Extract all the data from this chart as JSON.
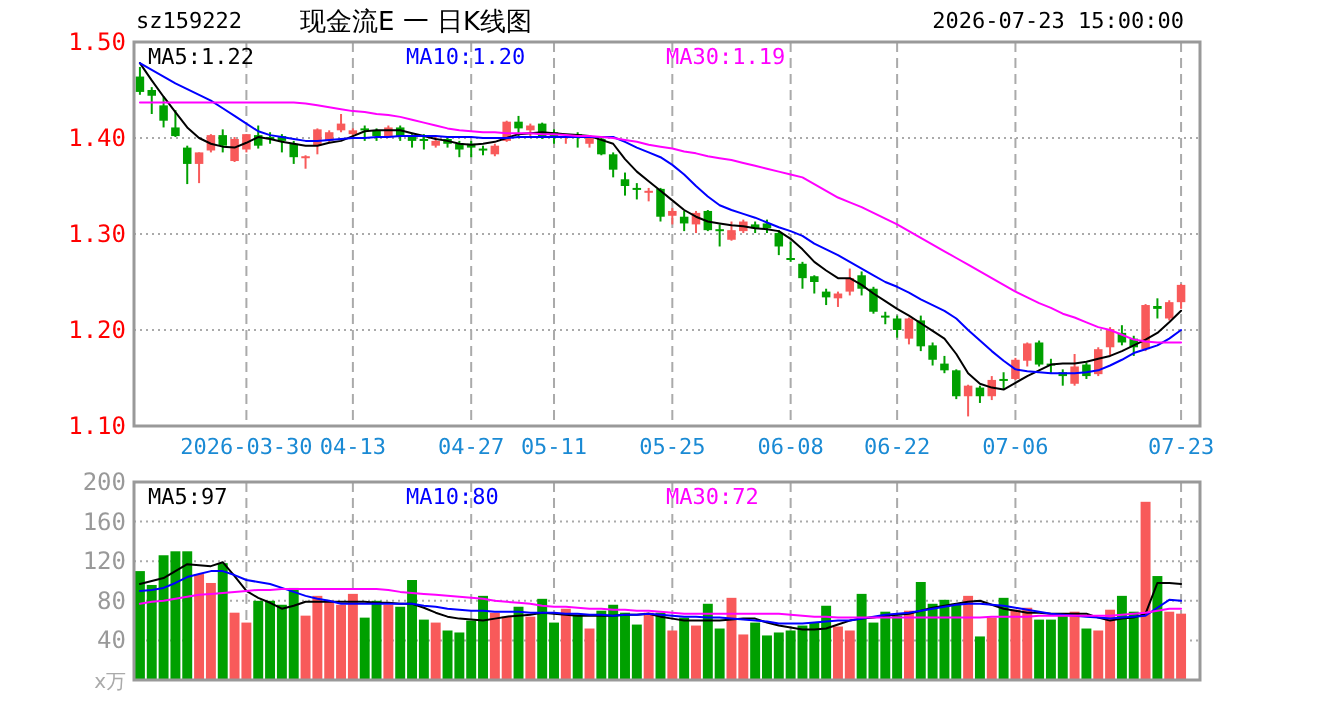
{
  "chart_data": [
    {
      "type": "candlestick",
      "title": "现金流E 一 日K线图",
      "subtitle": "sz159222",
      "annotations": [
        "2026-07-23 15:00:00"
      ],
      "categories": [
        null,
        null,
        null,
        null,
        null,
        null,
        null,
        null,
        null,
        "2026-03-30",
        null,
        null,
        null,
        null,
        null,
        null,
        null,
        null,
        "04-13",
        null,
        null,
        null,
        null,
        null,
        null,
        null,
        null,
        null,
        "04-27",
        null,
        null,
        null,
        null,
        null,
        null,
        "05-11",
        null,
        null,
        null,
        null,
        null,
        null,
        null,
        null,
        null,
        "05-25",
        null,
        null,
        null,
        null,
        null,
        null,
        null,
        null,
        null,
        "06-08",
        null,
        null,
        null,
        null,
        null,
        null,
        null,
        null,
        "06-22",
        null,
        null,
        null,
        null,
        null,
        null,
        null,
        null,
        null,
        "07-06",
        null,
        null,
        null,
        null,
        null,
        null,
        null,
        null,
        null,
        null,
        null,
        null,
        null,
        "07-23"
      ],
      "ohlc": [
        [
          1.464,
          1.474,
          1.445,
          1.448
        ],
        [
          1.45,
          1.453,
          1.425,
          1.444
        ],
        [
          1.434,
          1.443,
          1.411,
          1.418
        ],
        [
          1.411,
          1.429,
          1.401,
          1.402
        ],
        [
          1.39,
          1.392,
          1.352,
          1.373
        ],
        [
          1.373,
          1.385,
          1.353,
          1.385
        ],
        [
          1.387,
          1.404,
          1.385,
          1.403
        ],
        [
          1.403,
          1.409,
          1.385,
          1.392
        ],
        [
          1.376,
          1.401,
          1.375,
          1.399
        ],
        [
          1.388,
          1.404,
          1.385,
          1.404
        ],
        [
          1.403,
          1.413,
          1.389,
          1.392
        ],
        [
          1.401,
          1.406,
          1.394,
          1.399
        ],
        [
          1.402,
          1.404,
          1.385,
          1.397
        ],
        [
          1.394,
          1.397,
          1.373,
          1.38
        ],
        [
          1.38,
          1.382,
          1.368,
          1.381
        ],
        [
          1.392,
          1.41,
          1.383,
          1.409
        ],
        [
          1.397,
          1.408,
          1.395,
          1.406
        ],
        [
          1.408,
          1.425,
          1.406,
          1.415
        ],
        [
          1.404,
          1.41,
          1.401,
          1.408
        ],
        [
          1.41,
          1.413,
          1.397,
          1.408
        ],
        [
          1.408,
          1.41,
          1.397,
          1.402
        ],
        [
          1.402,
          1.413,
          1.401,
          1.411
        ],
        [
          1.411,
          1.413,
          1.397,
          1.402
        ],
        [
          1.402,
          1.404,
          1.39,
          1.397
        ],
        [
          1.399,
          1.404,
          1.388,
          1.397
        ],
        [
          1.392,
          1.401,
          1.39,
          1.397
        ],
        [
          1.399,
          1.402,
          1.39,
          1.394
        ],
        [
          1.394,
          1.397,
          1.38,
          1.388
        ],
        [
          1.394,
          1.397,
          1.38,
          1.39
        ],
        [
          1.389,
          1.392,
          1.382,
          1.387
        ],
        [
          1.383,
          1.394,
          1.381,
          1.392
        ],
        [
          1.397,
          1.418,
          1.396,
          1.417
        ],
        [
          1.417,
          1.423,
          1.401,
          1.41
        ],
        [
          1.408,
          1.415,
          1.401,
          1.413
        ],
        [
          1.415,
          1.416,
          1.399,
          1.402
        ],
        [
          1.406,
          1.409,
          1.394,
          1.402
        ],
        [
          1.4,
          1.404,
          1.394,
          1.402
        ],
        [
          1.404,
          1.406,
          1.39,
          1.401
        ],
        [
          1.394,
          1.402,
          1.39,
          1.401
        ],
        [
          1.399,
          1.401,
          1.382,
          1.383
        ],
        [
          1.383,
          1.385,
          1.359,
          1.367
        ],
        [
          1.357,
          1.364,
          1.34,
          1.35
        ],
        [
          1.348,
          1.353,
          1.336,
          1.347
        ],
        [
          1.343,
          1.348,
          1.334,
          1.345
        ],
        [
          1.347,
          1.348,
          1.313,
          1.318
        ],
        [
          1.319,
          1.327,
          1.31,
          1.324
        ],
        [
          1.318,
          1.324,
          1.303,
          1.311
        ],
        [
          1.31,
          1.324,
          1.301,
          1.322
        ],
        [
          1.324,
          1.325,
          1.303,
          1.304
        ],
        [
          1.305,
          1.31,
          1.287,
          1.303
        ],
        [
          1.294,
          1.313,
          1.293,
          1.304
        ],
        [
          1.303,
          1.315,
          1.301,
          1.313
        ],
        [
          1.31,
          1.313,
          1.301,
          1.306
        ],
        [
          1.311,
          1.315,
          1.301,
          1.306
        ],
        [
          1.301,
          1.304,
          1.278,
          1.287
        ],
        [
          1.275,
          1.292,
          1.271,
          1.273
        ],
        [
          1.269,
          1.271,
          1.243,
          1.254
        ],
        [
          1.256,
          1.257,
          1.238,
          1.25
        ],
        [
          1.24,
          1.243,
          1.226,
          1.234
        ],
        [
          1.233,
          1.24,
          1.224,
          1.238
        ],
        [
          1.24,
          1.264,
          1.236,
          1.254
        ],
        [
          1.257,
          1.261,
          1.236,
          1.243
        ],
        [
          1.243,
          1.245,
          1.217,
          1.219
        ],
        [
          1.215,
          1.219,
          1.206,
          1.213
        ],
        [
          1.212,
          1.215,
          1.192,
          1.2
        ],
        [
          1.191,
          1.213,
          1.185,
          1.212
        ],
        [
          1.21,
          1.215,
          1.178,
          1.183
        ],
        [
          1.184,
          1.187,
          1.163,
          1.169
        ],
        [
          1.165,
          1.173,
          1.155,
          1.158
        ],
        [
          1.158,
          1.159,
          1.128,
          1.131
        ],
        [
          1.131,
          1.143,
          1.11,
          1.142
        ],
        [
          1.14,
          1.142,
          1.124,
          1.131
        ],
        [
          1.131,
          1.152,
          1.127,
          1.148
        ],
        [
          1.149,
          1.156,
          1.138,
          1.147
        ],
        [
          1.149,
          1.171,
          1.148,
          1.169
        ],
        [
          1.168,
          1.187,
          1.162,
          1.186
        ],
        [
          1.187,
          1.189,
          1.162,
          1.164
        ],
        [
          1.165,
          1.17,
          1.155,
          1.163
        ],
        [
          1.156,
          1.159,
          1.142,
          1.152
        ],
        [
          1.144,
          1.175,
          1.142,
          1.162
        ],
        [
          1.164,
          1.166,
          1.149,
          1.152
        ],
        [
          1.154,
          1.182,
          1.152,
          1.18
        ],
        [
          1.182,
          1.203,
          1.173,
          1.201
        ],
        [
          1.197,
          1.205,
          1.184,
          1.187
        ],
        [
          1.191,
          1.194,
          1.173,
          1.182
        ],
        [
          1.18,
          1.227,
          1.178,
          1.226
        ],
        [
          1.225,
          1.233,
          1.212,
          1.222
        ],
        [
          1.212,
          1.231,
          1.21,
          1.229
        ],
        [
          1.229,
          1.248,
          1.222,
          1.247
        ]
      ],
      "colors": [
        "#00a000",
        "#00a000",
        "#00a000",
        "#00a000",
        "#00a000",
        "#f85a5a",
        "#f85a5a",
        "#00a000",
        "#f85a5a",
        "#f85a5a",
        "#00a000",
        "#00a000",
        "#00a000",
        "#00a000",
        "#f85a5a",
        "#f85a5a",
        "#f85a5a",
        "#f85a5a",
        "#f85a5a",
        "#00a000",
        "#00a000",
        "#f85a5a",
        "#00a000",
        "#00a000",
        "#00a000",
        "#f85a5a",
        "#00a000",
        "#00a000",
        "#00a000",
        "#00a000",
        "#f85a5a",
        "#f85a5a",
        "#00a000",
        "#f85a5a",
        "#00a000",
        "#00a000",
        "#f85a5a",
        "#00a000",
        "#f85a5a",
        "#00a000",
        "#00a000",
        "#00a000",
        "#00a000",
        "#f85a5a",
        "#00a000",
        "#f85a5a",
        "#00a000",
        "#f85a5a",
        "#00a000",
        "#00a000",
        "#f85a5a",
        "#f85a5a",
        "#00a000",
        "#00a000",
        "#00a000",
        "#00a000",
        "#00a000",
        "#00a000",
        "#00a000",
        "#f85a5a",
        "#f85a5a",
        "#00a000",
        "#00a000",
        "#00a000",
        "#00a000",
        "#f85a5a",
        "#00a000",
        "#00a000",
        "#00a000",
        "#00a000",
        "#f85a5a",
        "#00a000",
        "#f85a5a",
        "#00a000",
        "#f85a5a",
        "#f85a5a",
        "#00a000",
        "#00a000",
        "#00a000",
        "#f85a5a",
        "#00a000",
        "#f85a5a",
        "#f85a5a",
        "#00a000",
        "#00a000",
        "#f85a5a",
        "#00a000",
        "#f85a5a",
        "#f85a5a"
      ],
      "series": [
        {
          "type": "line",
          "name": "MA5:1.22",
          "color": "#000000",
          "values": [
            1.478,
            1.46,
            1.443,
            1.427,
            1.411,
            1.4,
            1.394,
            1.391,
            1.39,
            1.395,
            1.401,
            1.399,
            1.396,
            1.394,
            1.392,
            1.392,
            1.395,
            1.397,
            1.402,
            1.407,
            1.408,
            1.408,
            1.408,
            1.405,
            1.402,
            1.399,
            1.397,
            1.394,
            1.393,
            1.394,
            1.396,
            1.4,
            1.404,
            1.405,
            1.406,
            1.405,
            1.404,
            1.403,
            1.402,
            1.398,
            1.394,
            1.378,
            1.365,
            1.355,
            1.345,
            1.335,
            1.325,
            1.318,
            1.313,
            1.311,
            1.309,
            1.308,
            1.306,
            1.305,
            1.303,
            1.295,
            1.284,
            1.271,
            1.262,
            1.254,
            1.254,
            1.247,
            1.238,
            1.23,
            1.222,
            1.215,
            1.207,
            1.199,
            1.191,
            1.175,
            1.155,
            1.144,
            1.14,
            1.138,
            1.145,
            1.152,
            1.158,
            1.164,
            1.165,
            1.165,
            1.167,
            1.17,
            1.173,
            1.178,
            1.184,
            1.19,
            1.197,
            1.208,
            1.22
          ]
        },
        {
          "type": "line",
          "name": "MA10:1.20",
          "color": "#0000ff",
          "values": [
            1.478,
            1.471,
            1.464,
            1.457,
            1.451,
            1.445,
            1.439,
            1.431,
            1.423,
            1.415,
            1.407,
            1.403,
            1.401,
            1.399,
            1.397,
            1.397,
            1.398,
            1.399,
            1.4,
            1.4,
            1.401,
            1.401,
            1.402,
            1.402,
            1.402,
            1.402,
            1.401,
            1.401,
            1.401,
            1.4,
            1.4,
            1.4,
            1.401,
            1.401,
            1.401,
            1.401,
            1.401,
            1.401,
            1.401,
            1.401,
            1.401,
            1.396,
            1.39,
            1.385,
            1.38,
            1.372,
            1.362,
            1.35,
            1.339,
            1.33,
            1.325,
            1.321,
            1.317,
            1.312,
            1.307,
            1.303,
            1.298,
            1.29,
            1.284,
            1.278,
            1.271,
            1.264,
            1.257,
            1.25,
            1.245,
            1.239,
            1.232,
            1.226,
            1.22,
            1.212,
            1.2,
            1.189,
            1.178,
            1.168,
            1.159,
            1.157,
            1.156,
            1.155,
            1.155,
            1.155,
            1.156,
            1.158,
            1.163,
            1.169,
            1.176,
            1.18,
            1.184,
            1.191,
            1.2
          ]
        },
        {
          "type": "line",
          "name": "MA30:1.19",
          "color": "#ff00ff",
          "values": [
            1.437,
            1.437,
            1.437,
            1.437,
            1.437,
            1.437,
            1.437,
            1.437,
            1.437,
            1.437,
            1.437,
            1.437,
            1.437,
            1.437,
            1.436,
            1.434,
            1.432,
            1.43,
            1.428,
            1.427,
            1.425,
            1.424,
            1.422,
            1.419,
            1.416,
            1.413,
            1.41,
            1.408,
            1.407,
            1.406,
            1.406,
            1.405,
            1.405,
            1.405,
            1.404,
            1.404,
            1.403,
            1.402,
            1.402,
            1.401,
            1.4,
            1.398,
            1.396,
            1.393,
            1.391,
            1.389,
            1.386,
            1.384,
            1.381,
            1.379,
            1.377,
            1.374,
            1.371,
            1.368,
            1.365,
            1.362,
            1.359,
            1.352,
            1.345,
            1.338,
            1.333,
            1.328,
            1.322,
            1.316,
            1.31,
            1.303,
            1.296,
            1.289,
            1.282,
            1.275,
            1.268,
            1.261,
            1.254,
            1.247,
            1.24,
            1.234,
            1.228,
            1.223,
            1.217,
            1.213,
            1.208,
            1.203,
            1.2,
            1.195,
            1.19,
            1.188,
            1.187,
            1.187,
            1.187
          ]
        }
      ],
      "ylim": [
        1.1,
        1.5
      ],
      "yticks": [
        {
          "value": 1.1,
          "label": "1.10"
        },
        {
          "value": 1.2,
          "label": "1.20"
        },
        {
          "value": 1.3,
          "label": "1.30"
        },
        {
          "value": 1.4,
          "label": "1.40"
        },
        {
          "value": 1.5,
          "label": "1.50"
        }
      ],
      "grid": true,
      "legend": "top"
    },
    {
      "type": "bar",
      "ylabel": "x万",
      "categories": [
        null,
        null,
        null,
        null,
        null,
        null,
        null,
        null,
        null,
        null,
        null,
        null,
        null,
        null,
        null,
        null,
        null,
        null,
        null,
        null,
        null,
        null,
        null,
        null,
        null,
        null,
        null,
        null,
        null,
        null,
        null,
        null,
        null,
        null,
        null,
        null,
        null,
        null,
        null,
        null,
        null,
        null,
        null,
        null,
        null,
        null,
        null,
        null,
        null,
        null,
        null,
        null,
        null,
        null,
        null,
        null,
        null,
        null,
        null,
        null,
        null,
        null,
        null,
        null,
        null,
        null,
        null,
        null,
        null,
        null,
        null,
        null,
        null,
        null,
        null,
        null,
        null,
        null,
        null,
        null,
        null,
        null,
        null,
        null,
        null,
        null,
        null,
        null,
        null
      ],
      "values": [
        110,
        96,
        126,
        130,
        130,
        107,
        98,
        118,
        68,
        58,
        80,
        80,
        76,
        93,
        65,
        85,
        80,
        76,
        87,
        63,
        80,
        76,
        74,
        101,
        61,
        58,
        50,
        48,
        60,
        85,
        68,
        64,
        74,
        64,
        82,
        58,
        72,
        66,
        52,
        70,
        76,
        68,
        56,
        68,
        68,
        50,
        63,
        55,
        77,
        52,
        83,
        46,
        58,
        45,
        48,
        50,
        55,
        58,
        75,
        54,
        50,
        87,
        58,
        69,
        65,
        70,
        99,
        77,
        81,
        77,
        85,
        44,
        63,
        83,
        71,
        73,
        61,
        61,
        65,
        69,
        52,
        50,
        71,
        85,
        69,
        180,
        105,
        69,
        67
      ],
      "colors": [
        "#00a000",
        "#00a000",
        "#00a000",
        "#00a000",
        "#00a000",
        "#f85a5a",
        "#f85a5a",
        "#00a000",
        "#f85a5a",
        "#f85a5a",
        "#00a000",
        "#00a000",
        "#00a000",
        "#00a000",
        "#f85a5a",
        "#f85a5a",
        "#f85a5a",
        "#f85a5a",
        "#f85a5a",
        "#00a000",
        "#00a000",
        "#f85a5a",
        "#00a000",
        "#00a000",
        "#00a000",
        "#f85a5a",
        "#00a000",
        "#00a000",
        "#00a000",
        "#00a000",
        "#f85a5a",
        "#f85a5a",
        "#00a000",
        "#f85a5a",
        "#00a000",
        "#00a000",
        "#f85a5a",
        "#00a000",
        "#f85a5a",
        "#00a000",
        "#00a000",
        "#00a000",
        "#00a000",
        "#f85a5a",
        "#00a000",
        "#f85a5a",
        "#00a000",
        "#f85a5a",
        "#00a000",
        "#00a000",
        "#f85a5a",
        "#f85a5a",
        "#00a000",
        "#00a000",
        "#00a000",
        "#00a000",
        "#00a000",
        "#00a000",
        "#00a000",
        "#f85a5a",
        "#f85a5a",
        "#00a000",
        "#00a000",
        "#00a000",
        "#00a000",
        "#f85a5a",
        "#00a000",
        "#00a000",
        "#00a000",
        "#00a000",
        "#f85a5a",
        "#00a000",
        "#f85a5a",
        "#00a000",
        "#f85a5a",
        "#f85a5a",
        "#00a000",
        "#00a000",
        "#00a000",
        "#f85a5a",
        "#00a000",
        "#f85a5a",
        "#f85a5a",
        "#00a000",
        "#00a000",
        "#f85a5a",
        "#00a000",
        "#f85a5a",
        "#f85a5a"
      ],
      "series": [
        {
          "type": "line",
          "name": "MA5:97",
          "color": "#000000",
          "values": [
            97,
            100,
            103,
            110,
            117,
            116,
            115,
            119,
            105,
            90,
            83,
            78,
            72,
            75,
            79,
            79,
            79,
            79,
            79,
            79,
            78,
            78,
            77,
            77,
            73,
            68,
            64,
            62,
            61,
            60,
            62,
            64,
            65,
            66,
            68,
            67,
            66,
            65,
            65,
            65,
            65,
            66,
            66,
            67,
            64,
            62,
            60,
            60,
            60,
            60,
            61,
            62,
            62,
            58,
            55,
            53,
            51,
            51,
            52,
            56,
            60,
            62,
            63,
            65,
            66,
            67,
            70,
            73,
            75,
            77,
            79,
            80,
            76,
            72,
            70,
            68,
            68,
            67,
            67,
            67,
            67,
            63,
            60,
            62,
            63,
            67,
            98,
            98,
            97
          ]
        },
        {
          "type": "line",
          "name": "MA10:80",
          "color": "#0000ff",
          "values": [
            90,
            91,
            93,
            98,
            104,
            107,
            110,
            110,
            106,
            101,
            99,
            97,
            93,
            89,
            85,
            82,
            80,
            77,
            77,
            77,
            77,
            77,
            77,
            77,
            75,
            74,
            72,
            71,
            70,
            70,
            69,
            69,
            69,
            68,
            68,
            68,
            67,
            67,
            66,
            66,
            65,
            66,
            66,
            67,
            66,
            65,
            64,
            64,
            63,
            63,
            62,
            61,
            60,
            59,
            57,
            57,
            57,
            58,
            59,
            60,
            60,
            62,
            64,
            66,
            67,
            68,
            70,
            72,
            74,
            76,
            77,
            77,
            76,
            75,
            73,
            71,
            69,
            67,
            66,
            65,
            64,
            63,
            62,
            63,
            64,
            65,
            73,
            81,
            80
          ]
        },
        {
          "type": "line",
          "name": "MA30:72",
          "color": "#ff00ff",
          "values": [
            77,
            79,
            80,
            82,
            84,
            86,
            87,
            88,
            89,
            90,
            91,
            91,
            92,
            92,
            92,
            92,
            92,
            92,
            92,
            92,
            92,
            91,
            89,
            88,
            87,
            86,
            85,
            84,
            83,
            82,
            80,
            79,
            78,
            77,
            75,
            74,
            74,
            73,
            72,
            72,
            71,
            71,
            70,
            70,
            69,
            68,
            67,
            67,
            67,
            67,
            67,
            67,
            67,
            67,
            67,
            66,
            65,
            64,
            64,
            63,
            63,
            63,
            63,
            63,
            63,
            63,
            63,
            63,
            63,
            63,
            63,
            63,
            64,
            64,
            64,
            64,
            65,
            65,
            65,
            65,
            65,
            65,
            65,
            66,
            67,
            68,
            70,
            72,
            72
          ]
        }
      ],
      "ylim": [
        0,
        200
      ],
      "yticks": [
        40,
        80,
        120,
        160,
        200
      ],
      "grid": true,
      "legend": "top",
      "tick_labels": "y"
    }
  ]
}
